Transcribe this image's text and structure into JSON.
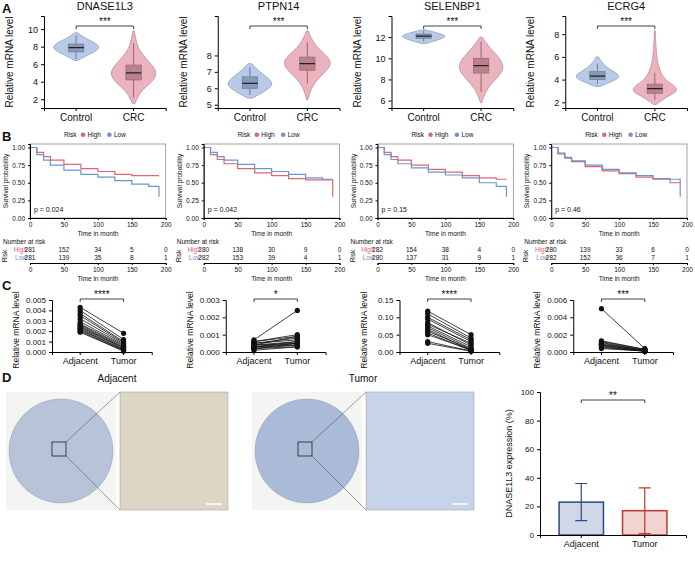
{
  "panel_labels": [
    "A",
    "B",
    "C",
    "D"
  ],
  "chart_data": [
    {
      "type": "violin",
      "title": "DNASE1L3",
      "y_label": "Relative mRNA level",
      "categories": [
        "Control",
        "CRC"
      ],
      "colors": [
        "#a7bde3",
        "#e6a0ad"
      ],
      "violins": [
        {
          "y": [
            6.4,
            7,
            7.5,
            8,
            8.5,
            9,
            9.6
          ],
          "density": [
            0.05,
            0.45,
            0.85,
            1,
            0.75,
            0.35,
            0.05
          ]
        },
        {
          "y": [
            1.5,
            3,
            4,
            5,
            6,
            7,
            8,
            9.8
          ],
          "density": [
            0.05,
            0.3,
            0.8,
            1,
            0.75,
            0.4,
            0.15,
            0.03
          ]
        }
      ],
      "boxes": [
        {
          "low": 6.6,
          "q1": 7.4,
          "median": 7.9,
          "q3": 8.3,
          "high": 9.3
        },
        {
          "low": 2.2,
          "q1": 4.2,
          "median": 5.0,
          "q3": 5.9,
          "high": 8.4
        }
      ],
      "ylim": [
        1,
        11.5
      ],
      "yticks": [
        2,
        4,
        6,
        8,
        10
      ],
      "annotation": "***"
    },
    {
      "type": "violin",
      "title": "PTPN14",
      "y_label": "Relative mRNA level",
      "categories": [
        "Control",
        "CRC"
      ],
      "colors": [
        "#a7bde3",
        "#e6a0ad"
      ],
      "violins": [
        {
          "y": [
            5.4,
            5.8,
            6.2,
            6.6,
            7,
            7.5
          ],
          "density": [
            0.1,
            0.6,
            1,
            0.8,
            0.4,
            0.08
          ]
        },
        {
          "y": [
            5.3,
            6,
            6.6,
            7.2,
            7.6,
            8,
            8.6,
            9.5
          ],
          "density": [
            0.03,
            0.15,
            0.45,
            0.9,
            1,
            0.8,
            0.3,
            0.03
          ]
        }
      ],
      "boxes": [
        {
          "low": 5.6,
          "q1": 6.0,
          "median": 6.3,
          "q3": 6.7,
          "high": 7.3
        },
        {
          "low": 6.3,
          "q1": 7.1,
          "median": 7.5,
          "q3": 7.9,
          "high": 8.8
        }
      ],
      "ylim": [
        4.8,
        10.4
      ],
      "yticks": [
        5,
        6,
        7,
        8
      ],
      "annotation": "***"
    },
    {
      "type": "violin",
      "title": "SELENBP1",
      "y_label": "Relative mRNA level",
      "categories": [
        "Control",
        "CRC"
      ],
      "colors": [
        "#a7bde3",
        "#e6a0ad"
      ],
      "violins": [
        {
          "y": [
            11.4,
            11.8,
            12.1,
            12.4,
            12.7
          ],
          "density": [
            0.1,
            0.7,
            1,
            0.6,
            0.05
          ]
        },
        {
          "y": [
            5.8,
            7,
            8,
            9,
            10,
            11,
            12
          ],
          "density": [
            0.03,
            0.2,
            0.6,
            1,
            0.8,
            0.35,
            0.05
          ]
        }
      ],
      "boxes": [
        {
          "low": 11.6,
          "q1": 11.9,
          "median": 12.1,
          "q3": 12.3,
          "high": 12.6
        },
        {
          "low": 6.8,
          "q1": 8.6,
          "median": 9.3,
          "q3": 10,
          "high": 11.6
        }
      ],
      "ylim": [
        5.3,
        14
      ],
      "yticks": [
        6,
        8,
        10,
        12
      ],
      "annotation": "***"
    },
    {
      "type": "violin",
      "title": "ECRG4",
      "y_label": "Relative mRNA level",
      "categories": [
        "Control",
        "CRC"
      ],
      "colors": [
        "#a7bde3",
        "#e6a0ad"
      ],
      "violins": [
        {
          "y": [
            3.4,
            3.9,
            4.3,
            4.8,
            5.3,
            6
          ],
          "density": [
            0.1,
            0.7,
            1,
            0.6,
            0.25,
            0.05
          ]
        },
        {
          "y": [
            1.8,
            2.5,
            3,
            3.5,
            4,
            5,
            6.5,
            8.3
          ],
          "density": [
            0.05,
            0.5,
            1,
            0.8,
            0.4,
            0.15,
            0.05,
            0.02
          ]
        }
      ],
      "boxes": [
        {
          "low": 3.6,
          "q1": 4.0,
          "median": 4.3,
          "q3": 4.7,
          "high": 5.4
        },
        {
          "low": 2.2,
          "q1": 2.8,
          "median": 3.2,
          "q3": 3.6,
          "high": 4.6
        }
      ],
      "ylim": [
        1.5,
        9.6
      ],
      "yticks": [
        2,
        4,
        6,
        8
      ],
      "annotation": "***"
    },
    {
      "type": "survival",
      "legend_title": "Risk",
      "legend": "top",
      "x_label": "Time in month",
      "y_label": "Survival probability",
      "table_title": "Number at risk",
      "annotation": "p = 0.024",
      "x": [
        0,
        10,
        20,
        30,
        50,
        75,
        100,
        125,
        150,
        175,
        190
      ],
      "xlim": [
        0,
        200
      ],
      "xticks": [
        0,
        50,
        100,
        150,
        200
      ],
      "ylim": [
        0,
        1.05
      ],
      "yticks": [
        {
          "value": 0,
          "label": "0.00"
        },
        {
          "value": 0.25,
          "label": "0.25"
        },
        {
          "value": 0.5,
          "label": "0.50"
        },
        {
          "value": 0.75,
          "label": "0.75"
        },
        {
          "value": 1,
          "label": "1.00"
        }
      ],
      "series": [
        {
          "name": "High",
          "color": "#e1646f",
          "values": [
            1,
            0.93,
            0.87,
            0.82,
            0.76,
            0.7,
            0.66,
            0.62,
            0.6,
            0.6,
            0.6
          ],
          "at_risk": [
            281,
            152,
            34,
            5,
            0
          ]
        },
        {
          "name": "Low",
          "color": "#6f93cf",
          "values": [
            1,
            0.9,
            0.82,
            0.75,
            0.68,
            0.62,
            0.58,
            0.53,
            0.48,
            0.45,
            0.3
          ],
          "at_risk": [
            281,
            139,
            35,
            8,
            1
          ]
        }
      ]
    },
    {
      "type": "survival",
      "legend_title": "Risk",
      "legend": "top",
      "x_label": "Time in month",
      "y_label": "Survival probability",
      "table_title": "Number at risk",
      "annotation": "p = 0.042",
      "x": [
        0,
        10,
        20,
        30,
        50,
        75,
        100,
        125,
        150,
        175,
        190
      ],
      "xlim": [
        0,
        200
      ],
      "xticks": [
        0,
        50,
        100,
        150,
        200
      ],
      "ylim": [
        0,
        1.05
      ],
      "yticks": [
        {
          "value": 0,
          "label": "0.00"
        },
        {
          "value": 0.25,
          "label": "0.25"
        },
        {
          "value": 0.5,
          "label": "0.50"
        },
        {
          "value": 0.75,
          "label": "0.75"
        },
        {
          "value": 1,
          "label": "1.00"
        }
      ],
      "series": [
        {
          "name": "High",
          "color": "#e1646f",
          "values": [
            1,
            0.9,
            0.83,
            0.77,
            0.7,
            0.64,
            0.6,
            0.56,
            0.54,
            0.54,
            0.3
          ],
          "at_risk": [
            280,
            138,
            30,
            9,
            0
          ]
        },
        {
          "name": "Low",
          "color": "#6f93cf",
          "values": [
            1,
            0.93,
            0.87,
            0.82,
            0.76,
            0.7,
            0.66,
            0.62,
            0.57,
            0.55,
            0.55
          ],
          "at_risk": [
            282,
            153,
            39,
            4,
            1
          ]
        }
      ]
    },
    {
      "type": "survival",
      "legend_title": "Risk",
      "legend": "top",
      "x_label": "Time in month",
      "y_label": "Survival probability",
      "table_title": "Number at risk",
      "annotation": "p = 0.15",
      "x": [
        0,
        10,
        20,
        30,
        50,
        75,
        100,
        125,
        150,
        175,
        190
      ],
      "xlim": [
        0,
        200
      ],
      "xticks": [
        0,
        50,
        100,
        150,
        200
      ],
      "ylim": [
        0,
        1.05
      ],
      "yticks": [
        {
          "value": 0,
          "label": "0.00"
        },
        {
          "value": 0.25,
          "label": "0.25"
        },
        {
          "value": 0.5,
          "label": "0.50"
        },
        {
          "value": 0.75,
          "label": "0.75"
        },
        {
          "value": 1,
          "label": "1.00"
        }
      ],
      "series": [
        {
          "name": "High",
          "color": "#e1646f",
          "values": [
            1,
            0.93,
            0.87,
            0.82,
            0.75,
            0.69,
            0.65,
            0.6,
            0.57,
            0.55,
            0.55
          ],
          "at_risk": [
            282,
            154,
            38,
            4,
            0
          ]
        },
        {
          "name": "Low",
          "color": "#6f93cf",
          "values": [
            1,
            0.9,
            0.83,
            0.77,
            0.71,
            0.65,
            0.61,
            0.57,
            0.5,
            0.45,
            0.3
          ],
          "at_risk": [
            280,
            137,
            31,
            9,
            1
          ]
        }
      ]
    },
    {
      "type": "survival",
      "legend_title": "Risk",
      "legend": "top",
      "x_label": "Time in month",
      "y_label": "Survival probability",
      "table_title": "Number at risk",
      "annotation": "p = 0.46",
      "x": [
        0,
        10,
        20,
        30,
        50,
        75,
        100,
        125,
        150,
        175,
        190
      ],
      "xlim": [
        0,
        200
      ],
      "xticks": [
        0,
        50,
        100,
        150,
        200
      ],
      "ylim": [
        0,
        1.05
      ],
      "yticks": [
        {
          "value": 0,
          "label": "0.00"
        },
        {
          "value": 0.25,
          "label": "0.25"
        },
        {
          "value": 0.5,
          "label": "0.50"
        },
        {
          "value": 0.75,
          "label": "0.75"
        },
        {
          "value": 1,
          "label": "1.00"
        }
      ],
      "series": [
        {
          "name": "High",
          "color": "#e1646f",
          "values": [
            1,
            0.91,
            0.85,
            0.8,
            0.73,
            0.67,
            0.63,
            0.58,
            0.55,
            0.5,
            0.5
          ],
          "at_risk": [
            280,
            139,
            33,
            6,
            0
          ]
        },
        {
          "name": "Low",
          "color": "#6f93cf",
          "values": [
            1,
            0.92,
            0.86,
            0.81,
            0.75,
            0.69,
            0.64,
            0.6,
            0.56,
            0.55,
            0.3
          ],
          "at_risk": [
            282,
            152,
            36,
            7,
            1
          ]
        }
      ]
    },
    {
      "type": "paired_dot",
      "y_label": "Relative mRNA level",
      "categories": [
        "Adjacent",
        "Tumor"
      ],
      "color": "#111111",
      "annotation": "****",
      "values": [
        [
          0.0043,
          0.004,
          0.0037,
          0.0035,
          0.0032,
          0.0029,
          0.0027,
          0.0026,
          0.0025,
          0.0024,
          0.0023,
          0.0022,
          0.0021,
          0.002,
          0.0019
        ],
        [
          0.0018,
          0.0012,
          0.001,
          0.0009,
          0.0008,
          0.0007,
          0.0006,
          0.0005,
          0.0004,
          0.0004,
          0.0003,
          0.0002,
          0.0002,
          0.0001,
          0.0001
        ]
      ],
      "ylim": [
        0,
        0.005
      ],
      "yticks": [
        {
          "value": 0,
          "label": "0.000"
        },
        {
          "value": 0.001,
          "label": "0.001"
        },
        {
          "value": 0.002,
          "label": "0.002"
        },
        {
          "value": 0.003,
          "label": "0.003"
        },
        {
          "value": 0.004,
          "label": "0.004"
        },
        {
          "value": 0.005,
          "label": "0.005"
        }
      ]
    },
    {
      "type": "paired_dot",
      "y_label": "Relative mRNA level",
      "categories": [
        "Adjacent",
        "Tumor"
      ],
      "color": "#111111",
      "annotation": "*",
      "values": [
        [
          0.0007,
          0.0006,
          0.0006,
          0.0005,
          0.0005,
          0.0004,
          0.0004,
          0.0004,
          0.0003,
          0.0003,
          0.0003,
          0.0002,
          0.0002,
          0.0002,
          0.0001
        ],
        [
          0.0024,
          0.0009,
          0.001,
          0.0007,
          0.0008,
          0.0006,
          0.0005,
          0.0009,
          0.0004,
          0.0006,
          0.0005,
          0.0004,
          0.0003,
          0.0005,
          0.0003
        ]
      ],
      "ylim": [
        0,
        0.003
      ],
      "yticks": [
        {
          "value": 0,
          "label": "0.000"
        },
        {
          "value": 0.001,
          "label": "0.001"
        },
        {
          "value": 0.002,
          "label": "0.002"
        },
        {
          "value": 0.003,
          "label": "0.003"
        }
      ]
    },
    {
      "type": "paired_dot",
      "y_label": "Relative mRNA level",
      "categories": [
        "Adjacent",
        "Tumor"
      ],
      "color": "#111111",
      "annotation": "****",
      "values": [
        [
          0.118,
          0.11,
          0.1,
          0.095,
          0.085,
          0.08,
          0.075,
          0.07,
          0.065,
          0.06,
          0.055,
          0.05,
          0.03,
          0.025
        ],
        [
          0.05,
          0.04,
          0.035,
          0.03,
          0.02,
          0.025,
          0.015,
          0.01,
          0.005,
          0.008,
          0.004,
          0.006,
          0.003,
          0.002
        ]
      ],
      "ylim": [
        0,
        0.15
      ],
      "yticks": [
        {
          "value": 0,
          "label": "0.00"
        },
        {
          "value": 0.05,
          "label": "0.05"
        },
        {
          "value": 0.1,
          "label": "0.10"
        },
        {
          "value": 0.15,
          "label": "0.15"
        }
      ]
    },
    {
      "type": "paired_dot",
      "y_label": "Relative mRNA level",
      "categories": [
        "Adjacent",
        "Tumor"
      ],
      "color": "#111111",
      "annotation": "***",
      "values": [
        [
          0.005,
          0.0013,
          0.0012,
          0.0011,
          0.001,
          0.0009,
          0.0008,
          0.0008,
          0.0007,
          0.0006,
          0.0005,
          0.0004
        ],
        [
          0.0004,
          0.0003,
          0.0003,
          0.0002,
          0.0002,
          0.0002,
          0.0001,
          0.0001,
          0.0001,
          0.0001,
          0.0001,
          0.0001
        ]
      ],
      "ylim": [
        0,
        0.006
      ],
      "yticks": [
        {
          "value": 0,
          "label": "0.000"
        },
        {
          "value": 0.002,
          "label": "0.002"
        },
        {
          "value": 0.004,
          "label": "0.004"
        },
        {
          "value": 0.006,
          "label": "0.006"
        }
      ]
    },
    {
      "type": "image",
      "title": "Adjacent"
    },
    {
      "type": "image",
      "title": "Tumor"
    },
    {
      "type": "bar",
      "y_label": "DNASE1L3 expression (%)",
      "categories": [
        "Adjacent",
        "Tumor"
      ],
      "values": [
        23,
        17
      ],
      "errors": [
        13,
        16
      ],
      "colors": [
        "#2b4a8b",
        "#c0392b"
      ],
      "ylim": [
        0,
        100
      ],
      "yticks": [
        0,
        20,
        40,
        60,
        80,
        100
      ],
      "annotation": "**"
    }
  ]
}
